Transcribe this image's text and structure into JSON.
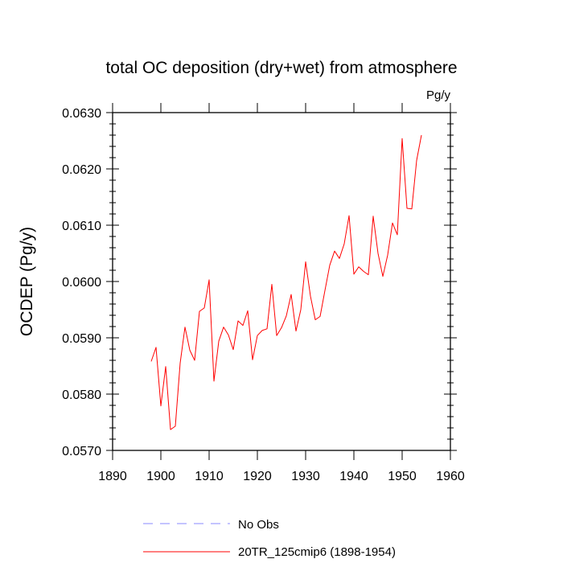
{
  "chart_data": {
    "type": "line",
    "title": "total OC deposition (dry+wet) from atmosphere",
    "units": "Pg/y",
    "xlabel": "",
    "ylabel": "OCDEP  (Pg/y)",
    "xlim": [
      1890,
      1960
    ],
    "ylim": [
      0.057,
      0.063
    ],
    "x_ticks": [
      1890,
      1900,
      1910,
      1920,
      1930,
      1940,
      1950,
      1960
    ],
    "x_tick_labels": [
      "1890",
      "1900",
      "1910",
      "1920",
      "1930",
      "1940",
      "1950",
      "1960"
    ],
    "y_ticks": [
      0.057,
      0.058,
      0.059,
      0.06,
      0.061,
      0.062,
      0.063
    ],
    "y_tick_labels": [
      "0.0570",
      "0.0580",
      "0.0590",
      "0.0600",
      "0.0610",
      "0.0620",
      "0.0630"
    ],
    "grid": false,
    "legend": {
      "placement": "bottom-left"
    },
    "series": [
      {
        "name": "20TR_125cmip6 (1898-1954)",
        "color": "#ff0000",
        "style": "solid",
        "x": [
          1898,
          1899,
          1900,
          1901,
          1902,
          1903,
          1904,
          1905,
          1906,
          1907,
          1908,
          1909,
          1910,
          1911,
          1912,
          1913,
          1914,
          1915,
          1916,
          1917,
          1918,
          1919,
          1920,
          1921,
          1922,
          1923,
          1924,
          1925,
          1926,
          1927,
          1928,
          1929,
          1930,
          1931,
          1932,
          1933,
          1934,
          1935,
          1936,
          1937,
          1938,
          1939,
          1940,
          1941,
          1942,
          1943,
          1944,
          1945,
          1946,
          1947,
          1948,
          1949,
          1950,
          1951,
          1952,
          1953,
          1954
        ],
        "values": [
          0.05858,
          0.05883,
          0.05779,
          0.05849,
          0.05737,
          0.05743,
          0.05855,
          0.05919,
          0.05878,
          0.0586,
          0.05947,
          0.05953,
          0.06003,
          0.05823,
          0.05894,
          0.05919,
          0.05905,
          0.05879,
          0.0593,
          0.05922,
          0.05948,
          0.05861,
          0.05904,
          0.05913,
          0.05916,
          0.05995,
          0.05904,
          0.05918,
          0.05939,
          0.05977,
          0.05912,
          0.0595,
          0.06035,
          0.05974,
          0.05932,
          0.05938,
          0.05984,
          0.06029,
          0.06054,
          0.06041,
          0.06067,
          0.06117,
          0.06013,
          0.06026,
          0.06018,
          0.06012,
          0.06116,
          0.0605,
          0.06009,
          0.06047,
          0.06104,
          0.06083,
          0.06254,
          0.0613,
          0.06129,
          0.06215,
          0.0626
        ]
      },
      {
        "name": "No Obs",
        "color": "#8a8aff",
        "style": "dashed",
        "x": [],
        "values": []
      }
    ]
  }
}
